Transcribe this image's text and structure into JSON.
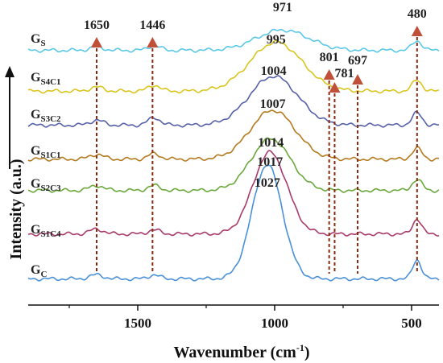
{
  "chart_data": {
    "type": "line",
    "xlabel": "Wavenumber (cm",
    "xlabel_sup": "-1",
    "xlabel_end": ")",
    "ylabel": "Intensity (a.u.)",
    "xlim": [
      1900,
      400
    ],
    "xticks": [
      1500,
      1000,
      500
    ],
    "xtick_labels": [
      "1500",
      "1000",
      "500"
    ],
    "series": [
      {
        "name": "G",
        "sub": "S",
        "color": "#5bc8e6",
        "base": 0.88,
        "peaks": [
          {
            "x": 1650,
            "h": 0.012,
            "w": 25
          },
          {
            "x": 1440,
            "h": 0.018,
            "w": 22
          },
          {
            "x": 971,
            "h": 0.075,
            "w": 95
          },
          {
            "x": 480,
            "h": 0.035,
            "w": 18
          }
        ]
      },
      {
        "name": "G",
        "sub": "S4C1",
        "color": "#d9c51e",
        "base": 0.73,
        "peaks": [
          {
            "x": 1650,
            "h": 0.015,
            "w": 25
          },
          {
            "x": 1440,
            "h": 0.022,
            "w": 22
          },
          {
            "x": 995,
            "h": 0.18,
            "w": 95
          },
          {
            "x": 480,
            "h": 0.04,
            "w": 18
          }
        ]
      },
      {
        "name": "G",
        "sub": "S3C2",
        "color": "#5560a8",
        "base": 0.605,
        "peaks": [
          {
            "x": 1650,
            "h": 0.018,
            "w": 25
          },
          {
            "x": 1440,
            "h": 0.028,
            "w": 22
          },
          {
            "x": 1004,
            "h": 0.18,
            "w": 88
          },
          {
            "x": 480,
            "h": 0.045,
            "w": 18
          }
        ]
      },
      {
        "name": "G",
        "sub": "S1C1",
        "color": "#b47a1e",
        "base": 0.48,
        "peaks": [
          {
            "x": 1650,
            "h": 0.018,
            "w": 25
          },
          {
            "x": 1440,
            "h": 0.02,
            "w": 22
          },
          {
            "x": 1007,
            "h": 0.18,
            "w": 82
          },
          {
            "x": 480,
            "h": 0.04,
            "w": 18
          }
        ]
      },
      {
        "name": "G",
        "sub": "S2C3",
        "color": "#6aa83c",
        "base": 0.365,
        "peaks": [
          {
            "x": 1650,
            "h": 0.018,
            "w": 25
          },
          {
            "x": 1440,
            "h": 0.018,
            "w": 22
          },
          {
            "x": 1014,
            "h": 0.19,
            "w": 72
          },
          {
            "x": 480,
            "h": 0.04,
            "w": 18
          }
        ]
      },
      {
        "name": "G",
        "sub": "S1C4",
        "color": "#a83a6a",
        "base": 0.205,
        "peaks": [
          {
            "x": 1650,
            "h": 0.018,
            "w": 25
          },
          {
            "x": 1440,
            "h": 0.015,
            "w": 22
          },
          {
            "x": 1017,
            "h": 0.3,
            "w": 62
          },
          {
            "x": 480,
            "h": 0.055,
            "w": 16
          }
        ]
      },
      {
        "name": "G",
        "sub": "C",
        "color": "#4a90d9",
        "base": 0.04,
        "peaks": [
          {
            "x": 1650,
            "h": 0.015,
            "w": 25
          },
          {
            "x": 1440,
            "h": 0.015,
            "w": 20
          },
          {
            "x": 1027,
            "h": 0.42,
            "w": 55
          },
          {
            "x": 480,
            "h": 0.07,
            "w": 16
          }
        ]
      }
    ],
    "peak_markers": [
      {
        "x": 1650,
        "label": "1650"
      },
      {
        "x": 1446,
        "label": "1446"
      },
      {
        "x": 801,
        "label": "801"
      },
      {
        "x": 781,
        "label": "781"
      },
      {
        "x": 697,
        "label": "697"
      },
      {
        "x": 480,
        "label": "480"
      }
    ],
    "peak_labels": [
      {
        "x": 971,
        "label": "971"
      },
      {
        "x": 995,
        "label": "995"
      },
      {
        "x": 1004,
        "label": "1004"
      },
      {
        "x": 1007,
        "label": "1007"
      },
      {
        "x": 1014,
        "label": "1014"
      },
      {
        "x": 1017,
        "label": "1017"
      },
      {
        "x": 1027,
        "label": "1027"
      }
    ],
    "colors": {
      "marker_line": "#8b2a10",
      "marker_triangle": "#c0503a"
    }
  }
}
